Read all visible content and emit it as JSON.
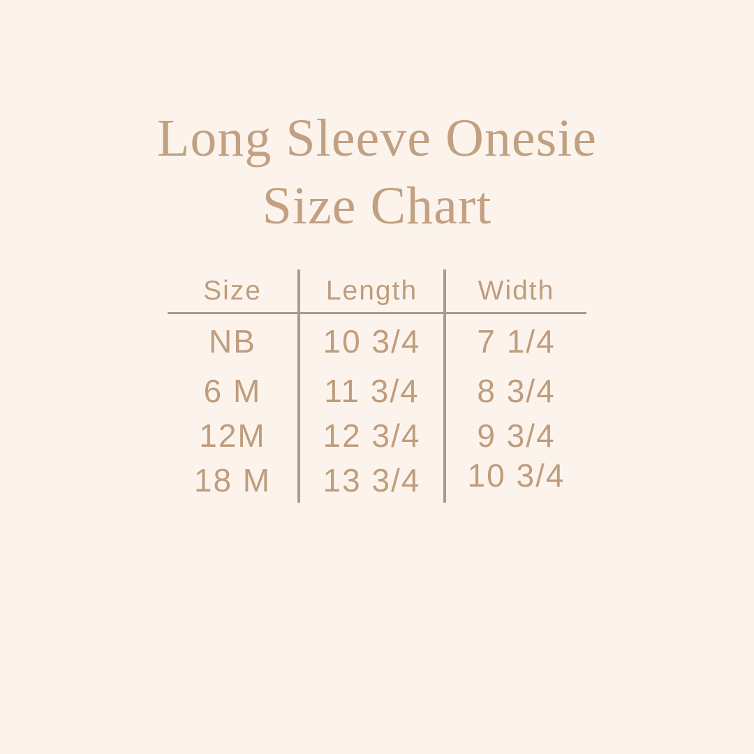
{
  "title": {
    "line1": "Long Sleeve Onesie",
    "line2": "Size Chart"
  },
  "table": {
    "columns": [
      "Size",
      "Length",
      "Width"
    ],
    "rows": [
      {
        "size": "NB",
        "length": "10 3/4",
        "width": "7 1/4"
      },
      {
        "size": "6 M",
        "length": "11 3/4",
        "width": "8 3/4"
      },
      {
        "size": "12M",
        "length": "12 3/4",
        "width": "9 3/4"
      },
      {
        "size": "18 M",
        "length": "13 3/4",
        "width": "10 3/4"
      }
    ]
  },
  "colors": {
    "background": "#FCF4EC",
    "title_text": "#C2A183",
    "table_text": "#BF9D7D",
    "line": "#AB9A89"
  }
}
